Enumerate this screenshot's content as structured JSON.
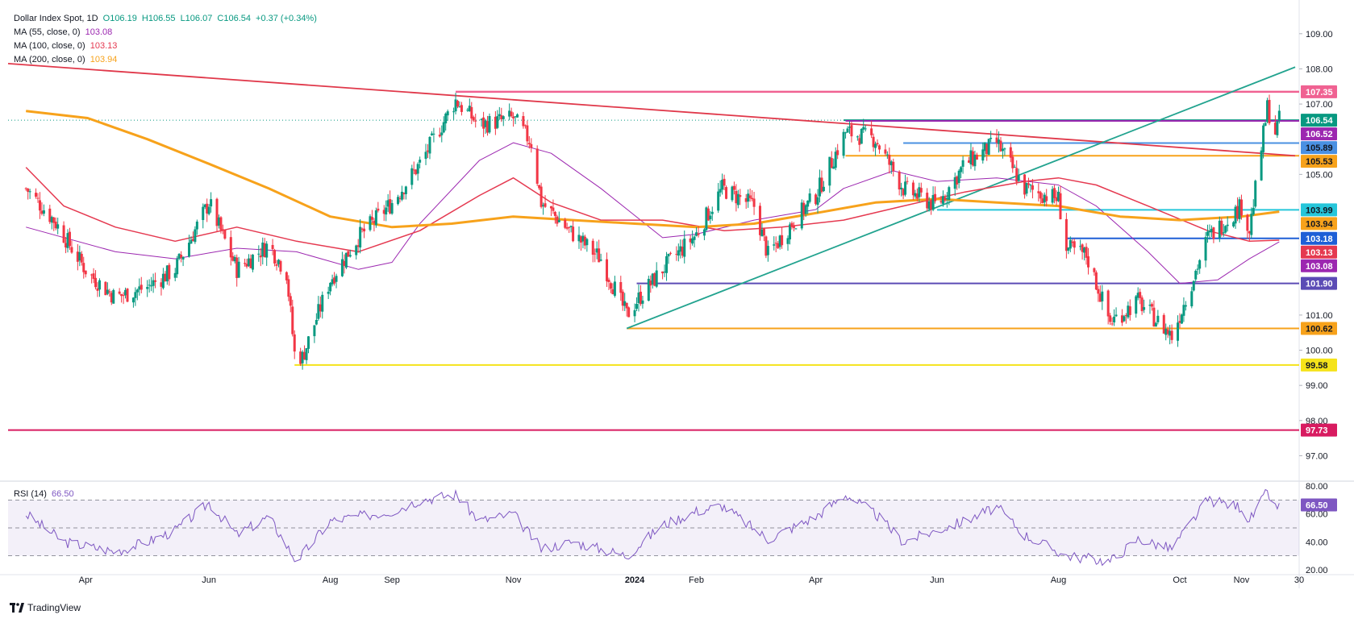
{
  "header": {
    "symbol": "Dollar Index Spot",
    "interval": "1D",
    "open": "O106.19",
    "high": "H106.55",
    "low": "L106.07",
    "close": "C106.54",
    "change": "+0.37 (+0.34%)",
    "ma55_label": "MA (55, close, 0)",
    "ma55_value": "103.08",
    "ma100_label": "MA (100, close, 0)",
    "ma100_value": "103.13",
    "ma200_label": "MA (200, close, 0)",
    "ma200_value": "103.94",
    "rsi_label": "RSI (14)",
    "rsi_value": "66.50"
  },
  "colors": {
    "up": "#089981",
    "down": "#f23645",
    "ma55": "#9c27b0",
    "ma100": "#e53950",
    "ma200": "#f7a21b",
    "rsi": "#7e57c2",
    "trend_red": "#e0384a",
    "trend_green": "#22a38f"
  },
  "branding": {
    "name": "TradingView"
  },
  "chart_data": [
    {
      "type": "candlestick",
      "title": "Dollar Index Spot, 1D",
      "x_labels": [
        "Apr",
        "Jun",
        "Aug",
        "Sep",
        "Nov",
        "2024",
        "Feb",
        "Apr",
        "Jun",
        "Aug",
        "Oct",
        "Nov",
        "30"
      ],
      "y_ticks": [
        97.0,
        98.0,
        99.0,
        100.0,
        101.0,
        105.0,
        107.0,
        108.0,
        109.0
      ],
      "ylim": [
        96.3,
        109.5
      ],
      "close_path": [
        [
          "2023-03-01",
          104.6
        ],
        [
          "2023-03-15",
          103.7
        ],
        [
          "2023-04-01",
          102.2
        ],
        [
          "2023-04-15",
          101.5
        ],
        [
          "2023-05-01",
          101.8
        ],
        [
          "2023-05-15",
          102.3
        ],
        [
          "2023-06-01",
          104.2
        ],
        [
          "2023-06-15",
          102.3
        ],
        [
          "2023-07-01",
          103.0
        ],
        [
          "2023-07-10",
          102.2
        ],
        [
          "2023-07-14",
          99.9
        ],
        [
          "2023-07-18",
          99.8
        ],
        [
          "2023-08-01",
          102.0
        ],
        [
          "2023-08-15",
          103.2
        ],
        [
          "2023-09-01",
          104.2
        ],
        [
          "2023-09-15",
          105.3
        ],
        [
          "2023-10-03",
          107.1
        ],
        [
          "2023-10-15",
          106.4
        ],
        [
          "2023-11-01",
          106.6
        ],
        [
          "2023-11-10",
          105.9
        ],
        [
          "2023-11-15",
          104.2
        ],
        [
          "2023-12-01",
          103.3
        ],
        [
          "2023-12-15",
          102.6
        ],
        [
          "2023-12-28",
          101.0
        ],
        [
          "2024-01-02",
          101.4
        ],
        [
          "2024-01-15",
          102.3
        ],
        [
          "2024-02-01",
          103.3
        ],
        [
          "2024-02-14",
          104.6
        ],
        [
          "2024-03-01",
          104.1
        ],
        [
          "2024-03-08",
          102.7
        ],
        [
          "2024-03-20",
          103.6
        ],
        [
          "2024-04-01",
          104.4
        ],
        [
          "2024-04-16",
          106.2
        ],
        [
          "2024-05-01",
          106.0
        ],
        [
          "2024-05-15",
          104.6
        ],
        [
          "2024-06-01",
          104.1
        ],
        [
          "2024-06-15",
          105.3
        ],
        [
          "2024-07-01",
          105.9
        ],
        [
          "2024-07-15",
          104.6
        ],
        [
          "2024-08-01",
          104.3
        ],
        [
          "2024-08-05",
          102.9
        ],
        [
          "2024-08-15",
          102.7
        ],
        [
          "2024-08-27",
          100.8
        ],
        [
          "2024-09-10",
          101.4
        ],
        [
          "2024-09-27",
          100.4
        ],
        [
          "2024-10-01",
          101.0
        ],
        [
          "2024-10-15",
          103.2
        ],
        [
          "2024-11-01",
          104.1
        ],
        [
          "2024-11-05",
          103.4
        ],
        [
          "2024-11-14",
          106.9
        ],
        [
          "2024-11-18",
          106.2
        ],
        [
          "2024-11-20",
          106.54
        ]
      ],
      "moving_averages": [
        {
          "name": "MA (55, close, 0)",
          "value": "103.08",
          "path": [
            [
              "2023-03-01",
              103.5
            ],
            [
              "2023-04-15",
              102.8
            ],
            [
              "2023-05-15",
              102.6
            ],
            [
              "2023-06-15",
              102.9
            ],
            [
              "2023-07-15",
              102.8
            ],
            [
              "2023-08-15",
              102.3
            ],
            [
              "2023-09-01",
              102.5
            ],
            [
              "2023-09-15",
              103.6
            ],
            [
              "2023-10-15",
              105.4
            ],
            [
              "2023-11-01",
              105.9
            ],
            [
              "2023-11-20",
              105.6
            ],
            [
              "2023-12-15",
              104.6
            ],
            [
              "2024-01-15",
              103.2
            ],
            [
              "2024-02-01",
              103.3
            ],
            [
              "2024-03-01",
              103.7
            ],
            [
              "2024-04-01",
              104.0
            ],
            [
              "2024-04-15",
              104.6
            ],
            [
              "2024-05-10",
              105.1
            ],
            [
              "2024-06-01",
              104.8
            ],
            [
              "2024-07-01",
              104.9
            ],
            [
              "2024-08-01",
              104.7
            ],
            [
              "2024-08-20",
              104.1
            ],
            [
              "2024-09-15",
              102.8
            ],
            [
              "2024-10-01",
              101.9
            ],
            [
              "2024-10-20",
              102.0
            ],
            [
              "2024-11-05",
              102.6
            ],
            [
              "2024-11-20",
              103.08
            ]
          ]
        },
        {
          "name": "MA (100, close, 0)",
          "value": "103.13",
          "path": [
            [
              "2023-03-01",
              105.2
            ],
            [
              "2023-03-20",
              104.1
            ],
            [
              "2023-04-15",
              103.5
            ],
            [
              "2023-05-15",
              103.1
            ],
            [
              "2023-06-15",
              103.5
            ],
            [
              "2023-07-15",
              103.1
            ],
            [
              "2023-08-15",
              102.8
            ],
            [
              "2023-09-15",
              103.4
            ],
            [
              "2023-10-15",
              104.4
            ],
            [
              "2023-11-01",
              104.9
            ],
            [
              "2023-11-20",
              104.2
            ],
            [
              "2023-12-15",
              103.7
            ],
            [
              "2024-01-15",
              103.7
            ],
            [
              "2024-02-15",
              103.4
            ],
            [
              "2024-03-15",
              103.5
            ],
            [
              "2024-04-15",
              103.7
            ],
            [
              "2024-05-15",
              104.1
            ],
            [
              "2024-06-15",
              104.5
            ],
            [
              "2024-07-15",
              104.8
            ],
            [
              "2024-08-01",
              104.9
            ],
            [
              "2024-08-20",
              104.7
            ],
            [
              "2024-09-15",
              104.1
            ],
            [
              "2024-10-15",
              103.4
            ],
            [
              "2024-11-05",
              103.1
            ],
            [
              "2024-11-20",
              103.13
            ]
          ]
        },
        {
          "name": "MA (200, close, 0)",
          "value": "103.94",
          "path": [
            [
              "2023-03-01",
              106.8
            ],
            [
              "2023-04-01",
              106.6
            ],
            [
              "2023-05-01",
              106.0
            ],
            [
              "2023-06-01",
              105.3
            ],
            [
              "2023-07-01",
              104.6
            ],
            [
              "2023-08-01",
              103.8
            ],
            [
              "2023-09-01",
              103.5
            ],
            [
              "2023-10-01",
              103.6
            ],
            [
              "2023-11-01",
              103.8
            ],
            [
              "2023-12-01",
              103.7
            ],
            [
              "2024-01-01",
              103.6
            ],
            [
              "2024-02-01",
              103.5
            ],
            [
              "2024-03-01",
              103.6
            ],
            [
              "2024-04-01",
              103.9
            ],
            [
              "2024-05-01",
              104.2
            ],
            [
              "2024-06-01",
              104.3
            ],
            [
              "2024-07-01",
              104.2
            ],
            [
              "2024-08-01",
              104.1
            ],
            [
              "2024-09-01",
              103.8
            ],
            [
              "2024-10-01",
              103.7
            ],
            [
              "2024-11-01",
              103.8
            ],
            [
              "2024-11-20",
              103.94
            ]
          ]
        }
      ],
      "horizontal_levels": [
        {
          "value": 107.35,
          "label": "107.35",
          "color": "#f06292",
          "from": "2023-10-03"
        },
        {
          "value": 106.54,
          "label": "106.54",
          "color": "#089981",
          "from": "2024-04-15"
        },
        {
          "value": 106.52,
          "label": "106.52",
          "color": "#9c27b0",
          "from": "2024-04-16"
        },
        {
          "value": 105.89,
          "label": "105.89",
          "color": "#4a90e2",
          "from": "2024-05-15"
        },
        {
          "value": 105.53,
          "label": "105.53",
          "color": "#f7a21b",
          "from": "2024-04-16"
        },
        {
          "value": 103.99,
          "label": "103.99",
          "color": "#26c6da",
          "from": "2024-06-01"
        },
        {
          "value": 103.94,
          "label": "103.94",
          "color": "#f7a21b",
          "from": null
        },
        {
          "value": 103.18,
          "label": "103.18",
          "color": "#1e5fd6",
          "from": "2024-08-05"
        },
        {
          "value": 103.13,
          "label": "103.13",
          "color": "#e53950",
          "from": null
        },
        {
          "value": 103.08,
          "label": "103.08",
          "color": "#9c27b0",
          "from": null
        },
        {
          "value": 101.9,
          "label": "101.90",
          "color": "#5b4bb5",
          "from": "2024-01-02"
        },
        {
          "value": 100.62,
          "label": "100.62",
          "color": "#f7a21b",
          "from": "2023-12-28"
        },
        {
          "value": 99.58,
          "label": "99.58",
          "color": "#f5e31a",
          "from": "2023-07-14"
        },
        {
          "value": 97.73,
          "label": "97.73",
          "color": "#d81b60",
          "from": "2023-02-20"
        }
      ],
      "trendlines": [
        {
          "name": "descending resistance",
          "color": "#e0384a",
          "from": [
            "2023-02-20",
            108.15
          ],
          "to": [
            "2024-11-28",
            105.53
          ]
        },
        {
          "name": "ascending support",
          "color": "#22a38f",
          "from": [
            "2023-12-28",
            100.62
          ],
          "to": [
            "2024-11-28",
            108.05
          ]
        }
      ]
    },
    {
      "type": "line",
      "title": "RSI (14)",
      "y_ticks": [
        20.0,
        40.0,
        60.0,
        80.0
      ],
      "ylim": [
        17,
        83
      ],
      "bands": [
        30,
        50,
        70
      ],
      "last_value": "66.50",
      "path": [
        [
          "2023-03-01",
          60
        ],
        [
          "2023-03-20",
          40
        ],
        [
          "2023-04-15",
          33
        ],
        [
          "2023-05-01",
          40
        ],
        [
          "2023-05-15",
          48
        ],
        [
          "2023-06-01",
          68
        ],
        [
          "2023-06-15",
          45
        ],
        [
          "2023-07-01",
          58
        ],
        [
          "2023-07-15",
          26
        ],
        [
          "2023-08-01",
          55
        ],
        [
          "2023-09-01",
          62
        ],
        [
          "2023-09-15",
          70
        ],
        [
          "2023-10-03",
          74
        ],
        [
          "2023-10-15",
          55
        ],
        [
          "2023-11-01",
          60
        ],
        [
          "2023-11-15",
          35
        ],
        [
          "2023-12-01",
          40
        ],
        [
          "2023-12-28",
          30
        ],
        [
          "2024-01-15",
          52
        ],
        [
          "2024-02-01",
          62
        ],
        [
          "2024-02-14",
          66
        ],
        [
          "2024-03-08",
          42
        ],
        [
          "2024-04-01",
          58
        ],
        [
          "2024-04-16",
          74
        ],
        [
          "2024-05-01",
          60
        ],
        [
          "2024-05-15",
          40
        ],
        [
          "2024-06-15",
          55
        ],
        [
          "2024-07-01",
          65
        ],
        [
          "2024-07-15",
          45
        ],
        [
          "2024-08-05",
          30
        ],
        [
          "2024-08-27",
          26
        ],
        [
          "2024-09-10",
          42
        ],
        [
          "2024-09-27",
          35
        ],
        [
          "2024-10-15",
          70
        ],
        [
          "2024-11-01",
          65
        ],
        [
          "2024-11-05",
          55
        ],
        [
          "2024-11-14",
          76
        ],
        [
          "2024-11-18",
          64
        ],
        [
          "2024-11-20",
          66.5
        ]
      ]
    }
  ]
}
